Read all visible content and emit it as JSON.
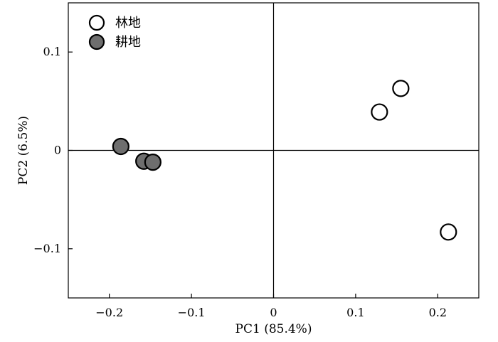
{
  "chart_data": {
    "type": "scatter",
    "xlabel": "PC1 (85.4%)",
    "ylabel": "PC2 (6.5%)",
    "xlim": [
      -0.25,
      0.25
    ],
    "ylim": [
      -0.15,
      0.15
    ],
    "x_ticks": [
      {
        "value": -0.2,
        "label": "−0.2"
      },
      {
        "value": -0.1,
        "label": "−0.1"
      },
      {
        "value": 0,
        "label": "0"
      },
      {
        "value": 0.1,
        "label": "0.1"
      },
      {
        "value": 0.2,
        "label": "0.2"
      }
    ],
    "y_ticks": [
      {
        "value": 0.1,
        "label": "0.1"
      },
      {
        "value": 0,
        "label": "0"
      },
      {
        "value": -0.1,
        "label": "−0.1"
      }
    ],
    "reference_lines": {
      "x": 0,
      "y": 0
    },
    "legend_position": "top-left",
    "series": [
      {
        "name": "林地",
        "fill": "#ffffff",
        "stroke": "#000000",
        "points": [
          {
            "x": 0.129,
            "y": 0.039
          },
          {
            "x": 0.155,
            "y": 0.063
          },
          {
            "x": 0.213,
            "y": -0.083
          }
        ]
      },
      {
        "name": "耕地",
        "fill": "#6e6e6e",
        "stroke": "#000000",
        "points": [
          {
            "x": -0.186,
            "y": 0.004
          },
          {
            "x": -0.158,
            "y": -0.011
          },
          {
            "x": -0.147,
            "y": -0.012
          }
        ]
      }
    ]
  }
}
